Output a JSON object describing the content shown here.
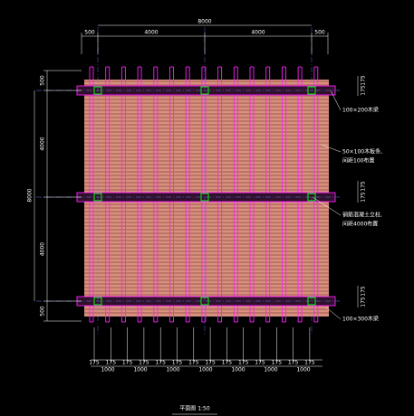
{
  "dimensions": {
    "top_total": "8000",
    "top": [
      "500",
      "4000",
      "4000",
      "500"
    ],
    "left_total": "8000",
    "left": [
      "500",
      "4000",
      "4000",
      "500"
    ],
    "right": [
      "175",
      "175",
      "175",
      "175",
      "175",
      "175"
    ],
    "bottom_small": [
      "175",
      "175",
      "175",
      "175",
      "175",
      "175",
      "175",
      "175",
      "175",
      "175",
      "175",
      "175",
      "175",
      "175"
    ],
    "bottom_large": [
      "1000",
      "1000",
      "1000",
      "1000",
      "1000",
      "1000",
      "1000"
    ]
  },
  "annotations": [
    {
      "lines": [
        "100×200木梁"
      ]
    },
    {
      "lines": [
        "50×100木板条,",
        "间距100布置"
      ]
    },
    {
      "lines": [
        "钢筋混凝土立柱,",
        "间距4000布置"
      ]
    },
    {
      "lines": [
        "100×300木梁"
      ]
    }
  ],
  "title": "平面图 1:50"
}
